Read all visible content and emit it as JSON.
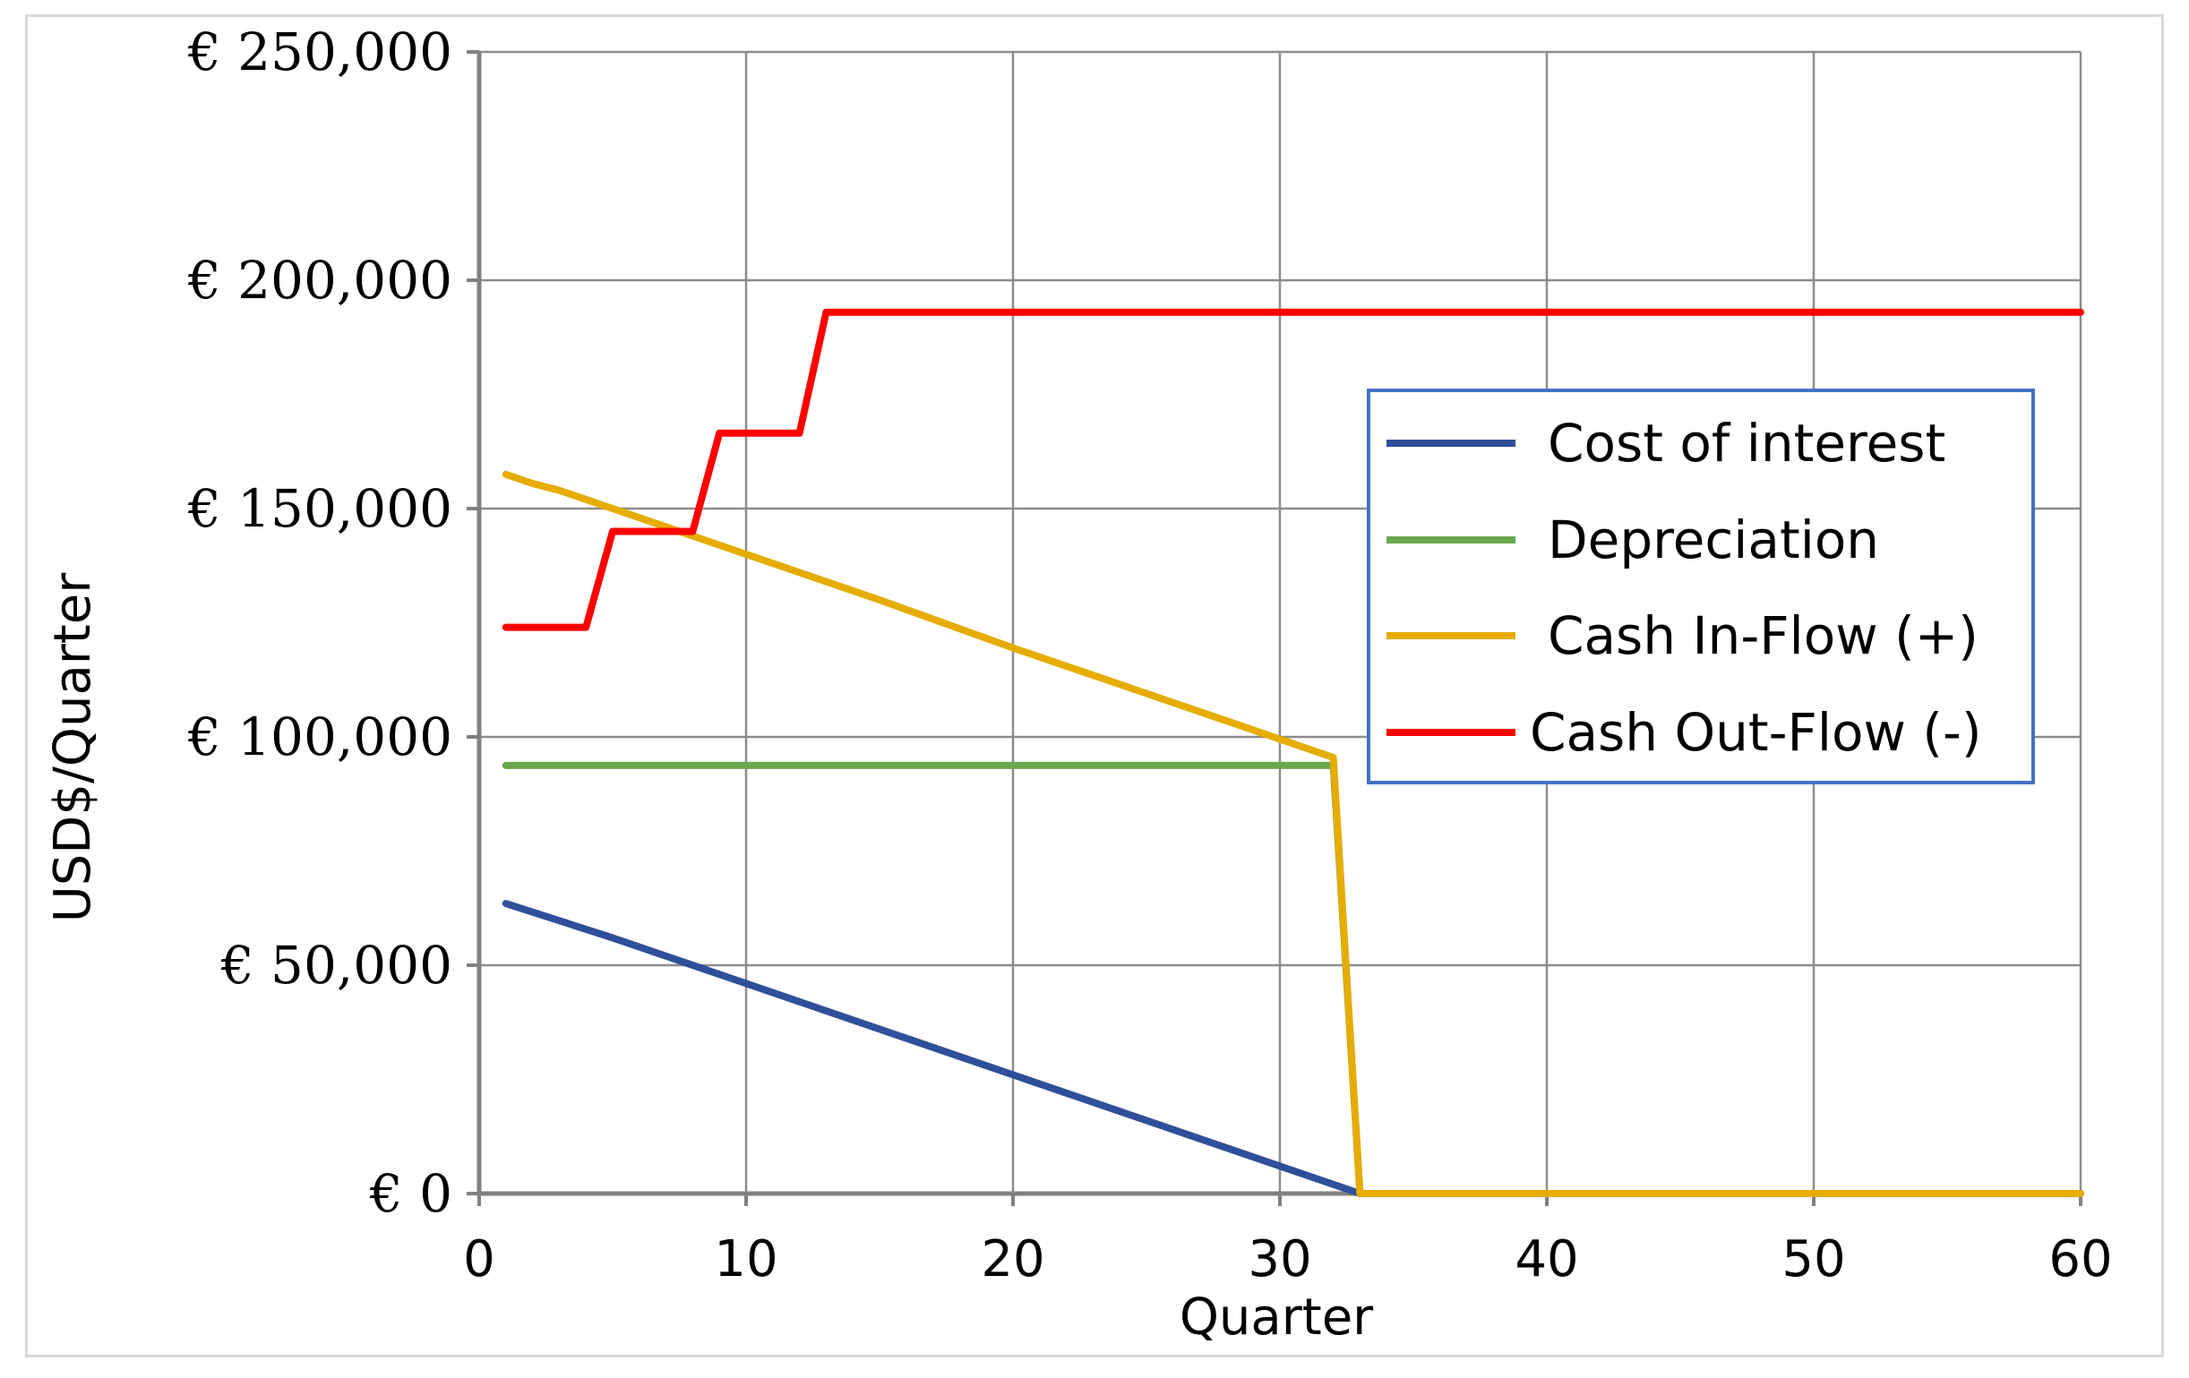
{
  "chart_data": {
    "type": "line",
    "xlabel": "Quarter",
    "ylabel": "USD$/Quarter",
    "xlim": [
      0,
      60
    ],
    "ylim": [
      0,
      250000
    ],
    "x_ticks": [
      "0",
      "10",
      "20",
      "30",
      "40",
      "50",
      "60"
    ],
    "y_ticks": [
      "€ 0",
      "€ 50,000",
      "€ 100,000",
      "€ 150,000",
      "€ 200,000",
      "€ 250,000"
    ],
    "grid": true,
    "legend_position": "right",
    "series": [
      {
        "name": "Cost of interest",
        "color": "#2f4f9a",
        "points": [
          [
            1,
            63500
          ],
          [
            5,
            56000
          ],
          [
            10,
            46000
          ],
          [
            15,
            36000
          ],
          [
            20,
            26000
          ],
          [
            25,
            16000
          ],
          [
            30,
            6000
          ],
          [
            33,
            0
          ],
          [
            60,
            0
          ]
        ]
      },
      {
        "name": "Depreciation",
        "color": "#6aa84f",
        "points": [
          [
            1,
            93750
          ],
          [
            32,
            93750
          ],
          [
            33,
            0
          ],
          [
            60,
            0
          ]
        ]
      },
      {
        "name": "Cash In-Flow (+)",
        "color": "#e6ac00",
        "points": [
          [
            1,
            157500
          ],
          [
            2,
            155500
          ],
          [
            3,
            154000
          ],
          [
            4,
            152000
          ],
          [
            5,
            150000
          ],
          [
            10,
            140000
          ],
          [
            12,
            136000
          ],
          [
            15,
            130000
          ],
          [
            20,
            119500
          ],
          [
            25,
            109500
          ],
          [
            30,
            99500
          ],
          [
            32,
            95500
          ],
          [
            33,
            0
          ],
          [
            60,
            0
          ]
        ]
      },
      {
        "name": "Cash Out-Flow (-)",
        "color": "#ff0000",
        "points": [
          [
            1,
            124000
          ],
          [
            4,
            124000
          ],
          [
            5,
            145000
          ],
          [
            8,
            145000
          ],
          [
            9,
            166500
          ],
          [
            12,
            166500
          ],
          [
            13,
            193000
          ],
          [
            60,
            193000
          ]
        ]
      }
    ]
  }
}
